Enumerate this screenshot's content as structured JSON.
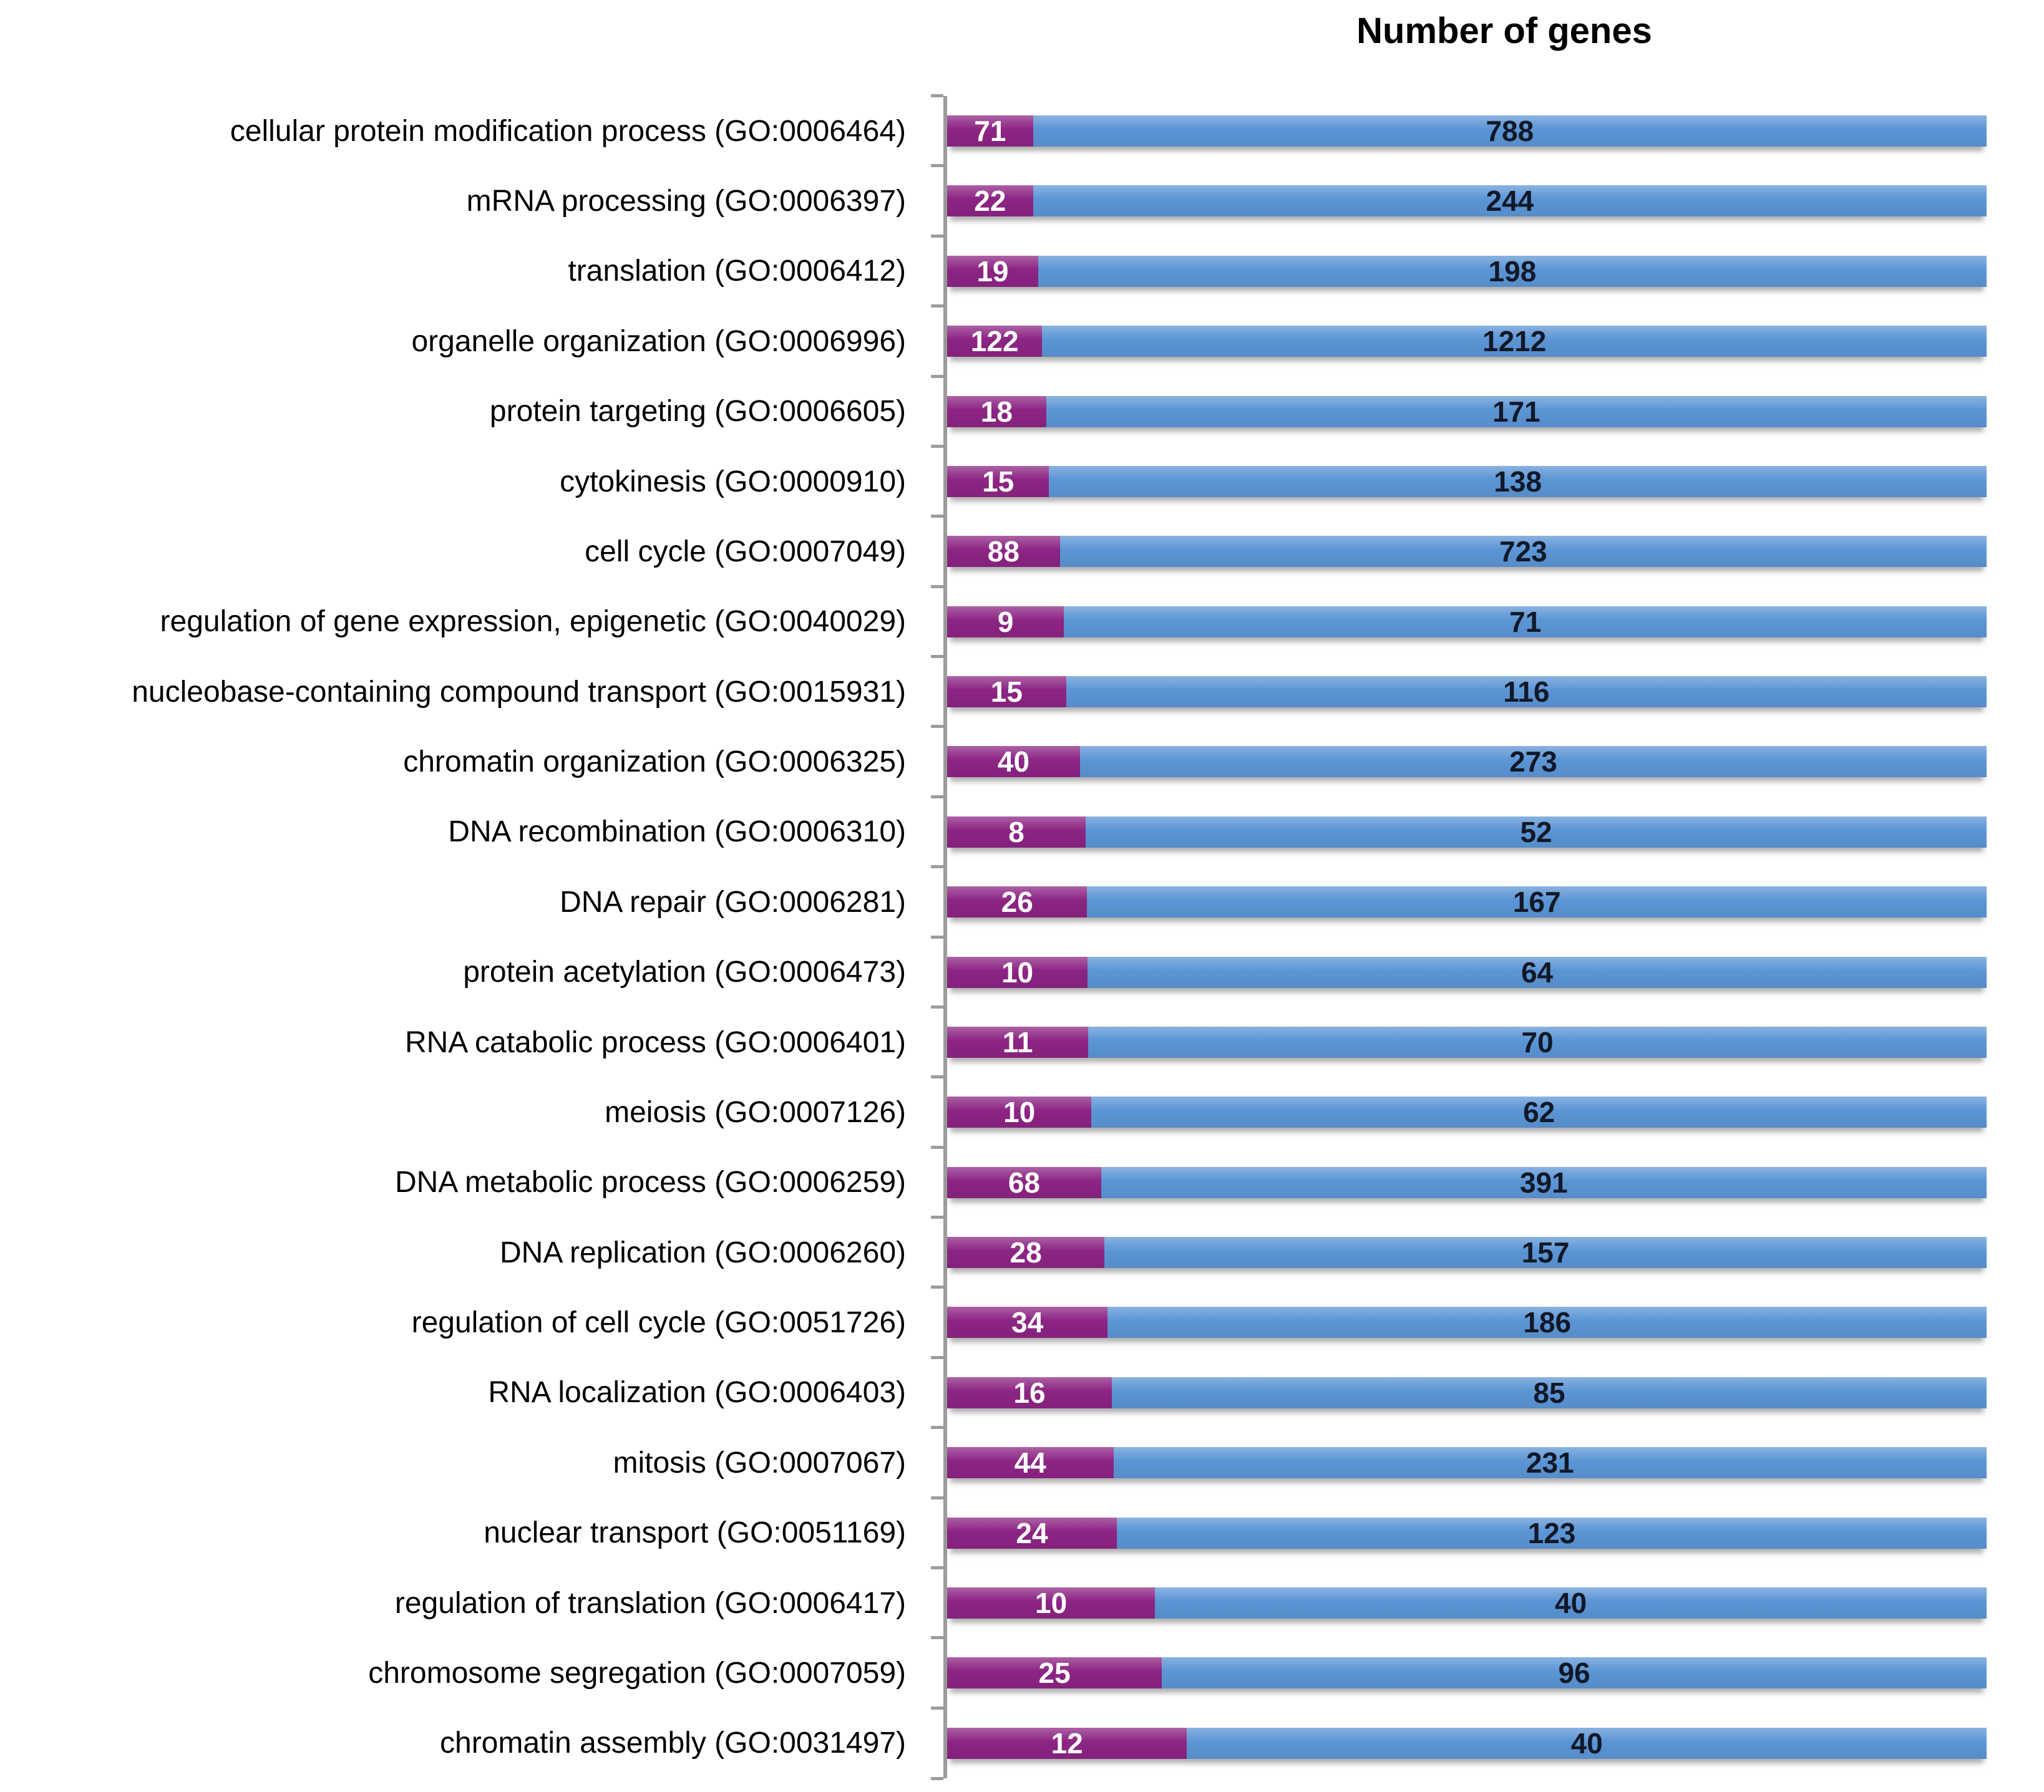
{
  "title": "Number of genes",
  "colors": {
    "purple": "#8C2483",
    "blue": "#5B95D5",
    "axis": "#9c9c9c",
    "background": "#ffffff",
    "label_text": "#000000",
    "purple_number_text": "#ffffff",
    "blue_number_text": "#111827"
  },
  "chart_data": {
    "type": "bar",
    "orientation": "horizontal-stacked-percent",
    "title": "Number of genes",
    "xlabel": "",
    "ylabel": "",
    "grid": false,
    "legend_position": "none",
    "note": "Each row is a full-width stacked bar; purple segment width is proportional to purple/(purple+blue). Purple value printed in white inside purple segment, blue value printed in black centered in blue segment.",
    "categories": [
      "cellular protein modification process (GO:0006464)",
      "mRNA processing (GO:0006397)",
      "translation (GO:0006412)",
      "organelle organization (GO:0006996)",
      "protein targeting (GO:0006605)",
      "cytokinesis (GO:0000910)",
      "cell cycle (GO:0007049)",
      "regulation of gene expression, epigenetic (GO:0040029)",
      "nucleobase-containing compound transport (GO:0015931)",
      "chromatin organization (GO:0006325)",
      "DNA recombination (GO:0006310)",
      "DNA repair (GO:0006281)",
      "protein acetylation (GO:0006473)",
      "RNA catabolic process (GO:0006401)",
      "meiosis (GO:0007126)",
      "DNA metabolic process (GO:0006259)",
      "DNA replication (GO:0006260)",
      "regulation of cell cycle (GO:0051726)",
      "RNA localization (GO:0006403)",
      "mitosis (GO:0007067)",
      "nuclear transport (GO:0051169)",
      "regulation of translation (GO:0006417)",
      "chromosome segregation (GO:0007059)",
      "chromatin assembly (GO:0031497)"
    ],
    "series": [
      {
        "name": "purple-segment",
        "color": "#8C2483",
        "values": [
          71,
          22,
          19,
          122,
          18,
          15,
          88,
          9,
          15,
          40,
          8,
          26,
          10,
          11,
          10,
          68,
          28,
          34,
          16,
          44,
          24,
          10,
          25,
          12
        ]
      },
      {
        "name": "blue-segment",
        "color": "#5B95D5",
        "values": [
          788,
          244,
          198,
          1212,
          171,
          138,
          723,
          71,
          116,
          273,
          52,
          167,
          64,
          70,
          62,
          391,
          157,
          186,
          85,
          231,
          123,
          40,
          96,
          40
        ]
      }
    ]
  }
}
